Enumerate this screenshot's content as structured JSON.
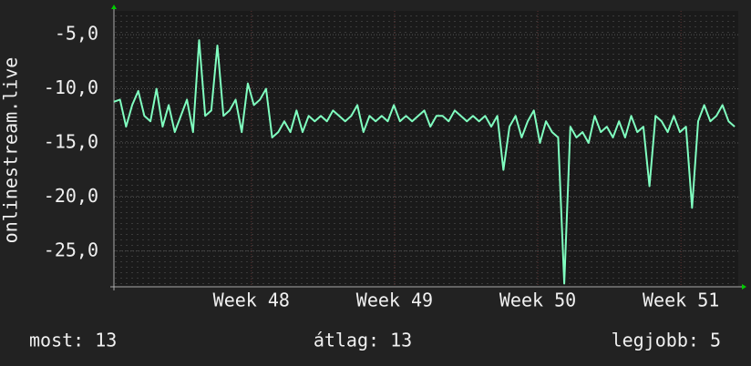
{
  "chart_data": {
    "type": "line",
    "y_label": "onlinestream.live",
    "x": [
      47.04,
      47.0825,
      47.125,
      47.1675,
      47.21,
      47.2525,
      47.295,
      47.3375,
      47.38,
      47.4225,
      47.465,
      47.5075,
      47.55,
      47.5925,
      47.635,
      47.6775,
      47.72,
      47.7625,
      47.805,
      47.8475,
      47.89,
      47.9325,
      47.975,
      48.0175,
      48.06,
      48.1025,
      48.145,
      48.1875,
      48.23,
      48.2725,
      48.315,
      48.3575,
      48.4,
      48.4425,
      48.485,
      48.5275,
      48.57,
      48.6125,
      48.655,
      48.6975,
      48.74,
      48.7825,
      48.825,
      48.8675,
      48.91,
      48.9525,
      48.995,
      49.0375,
      49.08,
      49.1225,
      49.165,
      49.2075,
      49.25,
      49.2925,
      49.335,
      49.3775,
      49.42,
      49.4625,
      49.505,
      49.5475,
      49.59,
      49.6325,
      49.675,
      49.7175,
      49.76,
      49.8025,
      49.845,
      49.8875,
      49.93,
      49.9725,
      50.015,
      50.0575,
      50.1,
      50.1425,
      50.185,
      50.2275,
      50.27,
      50.3125,
      50.355,
      50.3975,
      50.44,
      50.4825,
      50.525,
      50.5675,
      50.61,
      50.6525,
      50.695,
      50.7375,
      50.78,
      50.8225,
      50.865,
      50.9075,
      50.95,
      50.9925,
      51.035,
      51.0775,
      51.12,
      51.1625,
      51.205,
      51.2475,
      51.29,
      51.3325,
      51.375
    ],
    "series": [
      {
        "color": "#80ffc0",
        "values": [
          -11.2,
          -11.0,
          -13.5,
          -11.5,
          -10.2,
          -12.5,
          -13.0,
          -10.0,
          -13.5,
          -11.5,
          -14.0,
          -12.5,
          -11.0,
          -14.0,
          -5.5,
          -12.5,
          -12.0,
          -6.0,
          -12.5,
          -12.0,
          -11.0,
          -14.0,
          -9.5,
          -11.5,
          -11.0,
          -10.0,
          -14.5,
          -14.0,
          -13.0,
          -14.0,
          -12.0,
          -14.0,
          -12.5,
          -13.0,
          -12.5,
          -13.0,
          -12.0,
          -12.5,
          -13.0,
          -12.5,
          -11.5,
          -14.0,
          -12.5,
          -13.0,
          -12.5,
          -13.0,
          -11.5,
          -13.0,
          -12.5,
          -13.0,
          -12.5,
          -12.0,
          -13.5,
          -12.5,
          -12.5,
          -13.0,
          -12.0,
          -12.5,
          -13.0,
          -12.5,
          -13.0,
          -12.5,
          -13.5,
          -12.5,
          -17.5,
          -13.5,
          -12.5,
          -14.5,
          -13.0,
          -12.0,
          -15.0,
          -13.0,
          -14.0,
          -14.5,
          -28.0,
          -13.5,
          -14.5,
          -14.0,
          -15.0,
          -12.5,
          -14.0,
          -13.5,
          -14.5,
          -13.0,
          -14.5,
          -12.5,
          -14.0,
          -13.5,
          -19.0,
          -12.5,
          -13.0,
          -14.0,
          -12.5,
          -14.0,
          -13.5,
          -21.0,
          -13.0,
          -11.5,
          -13.0,
          -12.5,
          -11.5,
          -13.0,
          -13.5
        ]
      }
    ],
    "xlim": [
      47.04,
      51.4
    ],
    "xticks": [
      {
        "value": 48,
        "label": "Week 48"
      },
      {
        "value": 49,
        "label": "Week 49"
      },
      {
        "value": 50,
        "label": "Week 50"
      },
      {
        "value": 51,
        "label": "Week 51"
      }
    ],
    "ylim": [
      -28.3,
      -2.8
    ],
    "yticks": [
      {
        "value": -25,
        "label": "-25,0"
      },
      {
        "value": -20,
        "label": "-20,0"
      },
      {
        "value": -15,
        "label": "-15,0"
      },
      {
        "value": -10,
        "label": "-10,0"
      },
      {
        "value": -5,
        "label": "-5,0"
      }
    ],
    "grid": true,
    "footer": [
      "most: 13",
      "átlag: 13",
      "legjobb: 5"
    ]
  }
}
